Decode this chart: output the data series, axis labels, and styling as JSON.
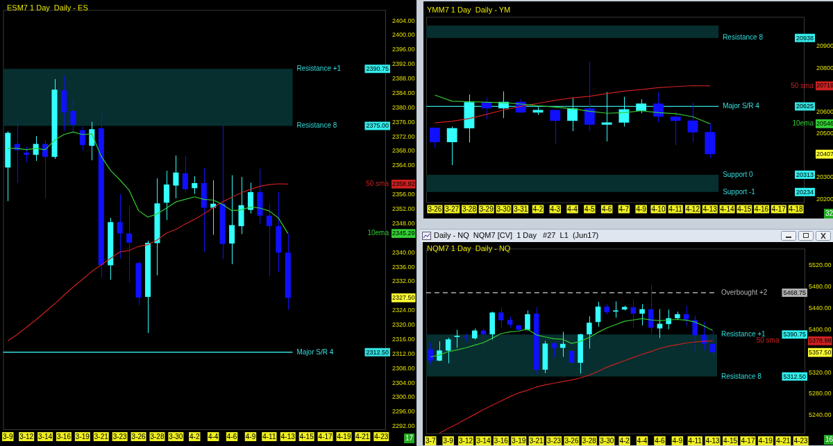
{
  "chart_data": [
    {
      "type": "candlestick",
      "title": "ESM7 1 Day  Daily - ES",
      "marker": "none",
      "legend": "right",
      "categories": [
        "3-9",
        null,
        "3-12",
        null,
        "3-14",
        null,
        "3-16",
        null,
        "3-19",
        null,
        "3-21",
        null,
        "3-23",
        null,
        "3-26",
        null,
        "3-28",
        null,
        "3-30",
        null,
        "4-2",
        null,
        "4-4",
        null,
        "4-6",
        null,
        "4-9",
        null,
        "4-11",
        null,
        "4-13",
        null,
        "4-15",
        null,
        "4-17",
        null,
        "4-19",
        null,
        "4-21",
        null,
        "4-23"
      ],
      "ohlc": [
        [
          2363.5,
          2373.5,
          2354.2,
          2373.1
        ],
        [
          2370.0,
          2376.2,
          2359.2,
          2368.3
        ],
        [
          2367.6,
          2369.3,
          2365.0,
          2367.0
        ],
        [
          2367.0,
          2372.2,
          2365.3,
          2370.0
        ],
        [
          2370.0,
          2371.1,
          2354.9,
          2366.4
        ],
        [
          2366.4,
          2387.9,
          2365.9,
          2385.0
        ],
        [
          2384.8,
          2388.8,
          2373.7,
          2378.7
        ],
        [
          2379.1,
          2382.4,
          2373.3,
          2375.3
        ],
        [
          2373.8,
          2374.7,
          2368.1,
          2369.7
        ],
        [
          2369.5,
          2376.1,
          2365.5,
          2374.1
        ],
        [
          2374.3,
          2378.9,
          2333.1,
          2336.6
        ],
        [
          2336.5,
          2349.6,
          2332.5,
          2348.4
        ],
        [
          2348.4,
          2356.2,
          2338.4,
          2345.3
        ],
        [
          2345.3,
          2352.9,
          2331.9,
          2342.7
        ],
        [
          2337.1,
          2337.6,
          2325.5,
          2327.6
        ],
        [
          2327.8,
          2343.3,
          2317.8,
          2342.7
        ],
        [
          2342.6,
          2360.5,
          2333.7,
          2353.6
        ],
        [
          2353.8,
          2362.6,
          2349.0,
          2358.8
        ],
        [
          2358.5,
          2366.8,
          2355.0,
          2362.1
        ],
        [
          2361.9,
          2366.8,
          2356.5,
          2357.5
        ],
        [
          2357.8,
          2361.1,
          2356.2,
          2359.2
        ],
        [
          2359.2,
          2363.4,
          2340.2,
          2352.4
        ],
        [
          2352.4,
          2360.0,
          2344.9,
          2353.5
        ],
        [
          2353.5,
          2375.1,
          2338.2,
          2342.4
        ],
        [
          2342.5,
          2361.4,
          2336.8,
          2347.6
        ],
        [
          2347.3,
          2360.9,
          2345.1,
          2353.1
        ],
        [
          2351.8,
          2359.3,
          2350.8,
          2356.7
        ],
        [
          2356.7,
          2363.2,
          2347.9,
          2350.2
        ],
        [
          2350.2,
          2353.5,
          2333.5,
          2347.3
        ],
        [
          2347.3,
          2356.7,
          2334.6,
          2340.0
        ],
        [
          2340.0,
          2345.3,
          2324.2,
          2327.5
        ],
        null,
        null,
        null,
        null,
        null,
        null,
        null,
        null,
        null,
        null
      ],
      "series": [
        {
          "type": "line",
          "name": "10ema",
          "color": "#33cc33",
          "values": [
            2368.8,
            2368.8,
            2368.4,
            2368.8,
            2368.4,
            2371.0,
            2372.6,
            2373.3,
            2372.6,
            2372.8,
            2366.6,
            2362.7,
            2360.1,
            2357.2,
            2351.6,
            2349.8,
            2350.7,
            2352.3,
            2354.0,
            2354.7,
            2355.4,
            2354.7,
            2354.5,
            2353.3,
            2351.6,
            2351.8,
            2352.6,
            2352.3,
            2351.5,
            2349.5,
            2345.29,
            null,
            null,
            null,
            null,
            null,
            null,
            null,
            null,
            null,
            null
          ]
        },
        {
          "type": "line",
          "name": "50 sma",
          "color": "#cc2020",
          "values": [
            2315.6,
            2317.4,
            2319.4,
            2321.4,
            2323.6,
            2325.8,
            2328.2,
            2330.5,
            2332.6,
            2334.8,
            2336.6,
            2338.4,
            2340.2,
            2340.6,
            2341.7,
            2342.2,
            2343.5,
            2345.4,
            2346.4,
            2347.9,
            2349.2,
            2350.7,
            2352.4,
            2354.0,
            2355.3,
            2356.5,
            2357.5,
            2358.3,
            2358.8,
            2359.0,
            2358.92,
            null,
            null,
            null,
            null,
            null,
            null,
            null,
            null,
            null,
            null
          ]
        }
      ],
      "ylim": [
        2291,
        2407
      ],
      "yticks": [
        {
          "value": 2292,
          "label": "2292.00"
        },
        {
          "value": 2296,
          "label": "2296.00"
        },
        {
          "value": 2300,
          "label": "2300.00"
        },
        {
          "value": 2304,
          "label": "2304.00"
        },
        {
          "value": 2308,
          "label": "2308.00"
        },
        {
          "value": 2312,
          "label": "2312.00"
        },
        {
          "value": 2316,
          "label": "2316.00"
        },
        {
          "value": 2320,
          "label": "2320.00"
        },
        {
          "value": 2324,
          "label": "2324.00"
        },
        {
          "value": 2327.5,
          "label": "2327.50"
        },
        {
          "value": 2332,
          "label": "2332.00"
        },
        {
          "value": 2336,
          "label": "2336.00"
        },
        {
          "value": 2340,
          "label": "2340.00"
        },
        {
          "value": 2345.29,
          "label": "2345.29"
        },
        {
          "value": 2348,
          "label": "2348.00"
        },
        {
          "value": 2352,
          "label": "2352.00"
        },
        {
          "value": 2356,
          "label": "2356.00"
        },
        {
          "value": 2358.92,
          "label": "2358.92"
        },
        {
          "value": 2364,
          "label": "2364.00"
        },
        {
          "value": 2368,
          "label": "2368.00"
        },
        {
          "value": 2372,
          "label": "2372.00"
        },
        {
          "value": 2376,
          "label": "2376.00"
        },
        {
          "value": 2380,
          "label": "2380.00"
        },
        {
          "value": 2384,
          "label": "2384.00"
        },
        {
          "value": 2388,
          "label": "2388.00"
        },
        {
          "value": 2392,
          "label": "2392.00"
        },
        {
          "value": 2396,
          "label": "2396.00"
        },
        {
          "value": 2400,
          "label": "2400.00"
        },
        {
          "value": 2404,
          "label": "2404.00"
        }
      ],
      "bands": [
        {
          "axis": "y",
          "from": 2375,
          "to": 2390.75,
          "color": "#072f2f"
        }
      ],
      "ref_lines": [
        {
          "axis": "y",
          "value": 2312.5,
          "label": "Major S/R 4",
          "color": "#33e0e0"
        }
      ],
      "annotations": [
        "Resistance +1",
        "2390.75",
        "Resistance 8",
        "2375.00",
        "2312.50",
        "17"
      ]
    },
    {
      "type": "candlestick",
      "title": "YMM7 1 Day  Daily - YM",
      "marker": "none",
      "legend": "right",
      "categories": [
        "3-26",
        "3-27",
        "3-28",
        "3-29",
        "3-30",
        "3-31",
        "4-2",
        "4-3",
        "4-4",
        "4-5",
        "4-6",
        "4-7",
        "4-9",
        "4-10",
        "4-11",
        "4-12",
        "4-13",
        "4-14",
        "4-15",
        "4-16",
        "4-17",
        "4-18"
      ],
      "ohlc": [
        [
          20528,
          20528,
          20437,
          20462
        ],
        [
          20462,
          20533,
          20357,
          20526
        ],
        [
          20525,
          20680,
          20460,
          20645
        ],
        [
          20642,
          20664,
          20567,
          20616
        ],
        [
          20616,
          20694,
          20572,
          20646
        ],
        [
          20646,
          20658,
          20597,
          20597
        ],
        [
          20597,
          20622,
          20586,
          20609
        ],
        [
          20609,
          20616,
          20454,
          20559
        ],
        [
          20559,
          20664,
          20512,
          20616
        ],
        [
          20616,
          20829,
          20512,
          20542
        ],
        [
          20542,
          20691,
          20465,
          20552
        ],
        [
          20551,
          20669,
          20533,
          20612
        ],
        [
          20605,
          20658,
          20594,
          20638
        ],
        [
          20638,
          20691,
          20553,
          20578
        ],
        [
          20578,
          20603,
          20448,
          20559
        ],
        [
          20561,
          20642,
          20463,
          20507
        ],
        [
          20508,
          20548,
          20388,
          20407
        ],
        null,
        null,
        null,
        null,
        null
      ],
      "series": [
        {
          "type": "line",
          "name": "10ema",
          "color": "#33cc33",
          "values": [
            20677,
            20649,
            20647,
            20644,
            20642,
            20636,
            20628,
            20622,
            20614,
            20603,
            20594,
            20597,
            20605,
            20597,
            20592,
            20578,
            20546,
            null,
            null,
            null,
            null,
            null
          ]
        },
        {
          "type": "line",
          "name": "50 sma",
          "color": "#cc2020",
          "values": [
            20550,
            20557,
            20570,
            20589,
            20609,
            20625,
            20639,
            20653,
            20664,
            20671,
            20684,
            20695,
            20702,
            20711,
            20716,
            20720,
            20719,
            null,
            null,
            null,
            null,
            null
          ]
        }
      ],
      "ylim": [
        20184,
        21034
      ],
      "yticks": [
        20200,
        20300,
        20407,
        20500,
        20546,
        20600,
        20719,
        20800,
        20900
      ],
      "bands": [
        {
          "axis": "y",
          "from": 20938,
          "to": 20995,
          "color": "#072f2f"
        },
        {
          "axis": "y",
          "from": 20234,
          "to": 20313,
          "color": "#072f2f"
        }
      ],
      "ref_lines": [
        {
          "axis": "y",
          "value": 20625,
          "label": "Major S/R 4",
          "color": "#33e0e0"
        }
      ],
      "annotations": [
        "Resistance 8",
        "20938",
        "20625",
        "Support 0",
        "20313",
        "Support -1",
        "20234",
        "32"
      ]
    },
    {
      "type": "candlestick",
      "title": "NQM7 1 Day  Daily - NQ",
      "subtitle": "Daily - NQ  NQM7 [CV]  1 Day   #27  L1  (Jun17)",
      "marker": "none",
      "legend": "right",
      "categories": [
        "3-7",
        null,
        "3-9",
        null,
        "3-12",
        null,
        "3-14",
        null,
        "3-16",
        null,
        "3-19",
        null,
        "3-21",
        null,
        "3-23",
        null,
        "3-26",
        null,
        "3-28",
        null,
        "3-30",
        null,
        "4-2",
        null,
        "4-4",
        null,
        "4-6",
        null,
        "4-9",
        null,
        "4-11",
        null,
        "4-13",
        null,
        "4-15",
        null,
        "4-17",
        null,
        "4-19",
        null,
        "4-21",
        null,
        "4-23"
      ],
      "ohlc": [
        [
          5363.2,
          5375.7,
          5334.8,
          5342.0
        ],
        [
          5342.0,
          5378.1,
          5341.0,
          5361.2
        ],
        [
          5360.8,
          5385.0,
          5337.2,
          5381.9
        ],
        [
          5386.3,
          5399.7,
          5366.0,
          5388.7
        ],
        [
          5386.6,
          5392.5,
          5376.6,
          5385.5
        ],
        [
          5383.9,
          5402.0,
          5381.4,
          5398.3
        ],
        [
          5398.3,
          5402.0,
          5364.6,
          5391.1
        ],
        [
          5391.1,
          5433.4,
          5381.4,
          5432.0
        ],
        [
          5432.0,
          5441.6,
          5403.1,
          5417.5
        ],
        [
          5418.0,
          5425.2,
          5403.6,
          5409.3
        ],
        [
          5407.9,
          5409.3,
          5398.3,
          5399.7
        ],
        [
          5399.7,
          5435.8,
          5398.3,
          5428.6
        ],
        [
          5429.6,
          5442.1,
          5316.5,
          5325.2
        ],
        [
          5325.2,
          5379.0,
          5318.9,
          5374.2
        ],
        [
          5374.2,
          5377.1,
          5349.2,
          5366.0
        ],
        [
          5366.0,
          5395.9,
          5349.2,
          5373.3
        ],
        [
          5360.3,
          5362.2,
          5333.8,
          5338.1
        ],
        [
          5338.1,
          5392.5,
          5318.0,
          5391.1
        ],
        [
          5391.1,
          5424.7,
          5364.6,
          5412.7
        ],
        [
          5414.2,
          5451.7,
          5405.5,
          5443.0
        ],
        [
          5443.0,
          5447.8,
          5428.6,
          5432.4
        ],
        [
          5433.4,
          5452.6,
          5422.3,
          5435.8
        ],
        [
          5437.3,
          5444.5,
          5435.8,
          5442.1
        ],
        [
          5441.6,
          5456.5,
          5403.6,
          5429.6
        ],
        [
          5429.6,
          5447.8,
          5407.9,
          5438.2
        ],
        [
          5438.2,
          5483.0,
          5391.0,
          5403.6
        ],
        [
          5402.1,
          5438.2,
          5384.3,
          5410.8
        ],
        [
          5410.3,
          5437.3,
          5400.7,
          5421.4
        ],
        [
          5421.4,
          5433.4,
          5418.0,
          5428.6
        ],
        [
          5428.6,
          5444.5,
          5406.9,
          5419.0
        ],
        [
          5418.0,
          5426.2,
          5358.8,
          5389.1
        ],
        [
          5390.1,
          5414.2,
          5361.2,
          5373.3
        ],
        [
          5373.3,
          5397.3,
          5349.2,
          5357.5
        ],
        null,
        null,
        null,
        null,
        null,
        null,
        null,
        null,
        null,
        null
      ],
      "series": [
        {
          "type": "line",
          "color": "#33cc33",
          "values": [
            5349.2,
            5352.6,
            5358.8,
            5362.2,
            5366.0,
            5370.9,
            5375.7,
            5383.9,
            5392.5,
            5395.9,
            5397.3,
            5400.7,
            5390.1,
            5386.3,
            5382.9,
            5381.9,
            5374.2,
            5378.1,
            5385.3,
            5394.9,
            5403.1,
            5409.3,
            5415.6,
            5418.0,
            5420.4,
            5418.0,
            5416.6,
            5418.0,
            5419.0,
            5417.5,
            5414.2,
            5406.9,
            5398.3,
            null,
            null,
            null,
            null,
            null,
            null,
            null,
            null,
            null,
            null
          ]
        },
        {
          "type": "line",
          "name": "50 sma",
          "color": "#cc2020",
          "values": [
            null,
            5207,
            5216,
            5224,
            5233,
            5242,
            5251,
            5259,
            5267,
            5275,
            5282,
            5287,
            5293,
            5297,
            5300,
            5303,
            5306,
            5310,
            5315,
            5322,
            5330,
            5336,
            5342,
            5348,
            5354,
            5359,
            5365,
            5369,
            5372,
            5375,
            5377,
            5378,
            5378.98,
            null,
            null,
            null,
            null,
            null,
            null,
            null,
            null,
            null,
            null
          ]
        }
      ],
      "ylim": [
        5205,
        5551
      ],
      "yticks": [
        {
          "value": 5240,
          "label": "5240.00"
        },
        {
          "value": 5280,
          "label": "5280.00"
        },
        {
          "value": 5320,
          "label": "5320.00"
        },
        {
          "value": 5357.5,
          "label": "5357.50"
        },
        {
          "value": 5378.98,
          "label": "5378.98"
        },
        {
          "value": 5400,
          "label": "5400.00"
        },
        {
          "value": 5440,
          "label": "5440.00"
        },
        {
          "value": 5480,
          "label": "5480.00"
        },
        {
          "value": 5520,
          "label": "5520.00"
        }
      ],
      "bands": [
        {
          "axis": "y",
          "from": 5312.5,
          "to": 5390.75,
          "color": "#072f2f"
        }
      ],
      "ref_lines": [
        {
          "axis": "y",
          "value": 5468.75,
          "label": "Overbought +2",
          "color": "#b0b0b0",
          "line_style": "dashed"
        }
      ],
      "annotations": [
        "5468.75",
        "Resistance +1",
        "5390.75",
        "Resistance 8",
        "5312.50",
        "16"
      ]
    }
  ]
}
